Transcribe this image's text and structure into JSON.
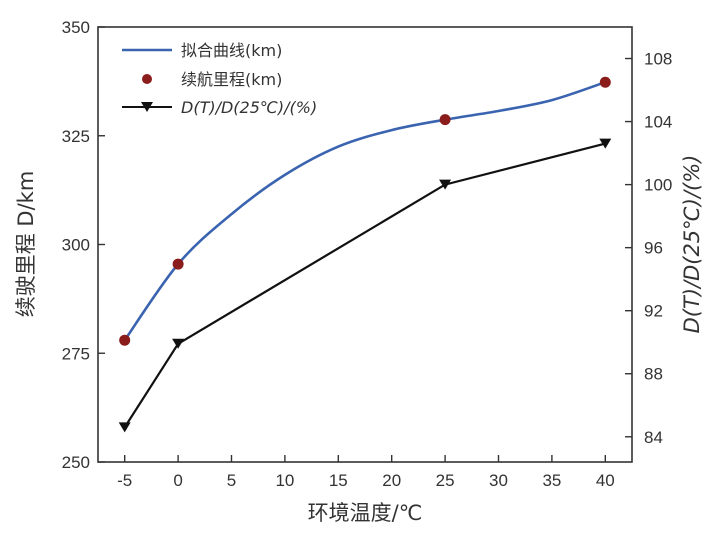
{
  "chart_data": {
    "type": "line",
    "x": [
      -5,
      0,
      25,
      40
    ],
    "xlabel": "环境温度/℃",
    "xlim": [
      -7.5,
      42.5
    ],
    "xticks": [
      -5,
      0,
      5,
      10,
      15,
      20,
      25,
      30,
      35,
      40
    ],
    "ylabel_left": "续驶里程 D/km",
    "ylim_left": [
      250,
      350
    ],
    "yticks_left": [
      250,
      275,
      300,
      325,
      350
    ],
    "ylabel_right": "D(T)/D(25℃)/(%)",
    "ylim_right": [
      82.4,
      110.0
    ],
    "yticks_right": [
      84,
      88,
      92,
      96,
      100,
      104,
      108
    ],
    "grid": false,
    "legend_position": "top-left",
    "series": [
      {
        "name": "拟合曲线(km)",
        "kind": "smooth-line",
        "axis": "left",
        "color": "#3a64b0",
        "x": [
          -5,
          0,
          5,
          10,
          15,
          20,
          25,
          30,
          35,
          40
        ],
        "values": [
          278,
          295.5,
          307,
          316,
          322.5,
          326.3,
          328.7,
          330.7,
          333.2,
          337.3
        ]
      },
      {
        "name": "续航里程(km)",
        "kind": "markers",
        "axis": "left",
        "color": "#8b1c1c",
        "x": [
          -5,
          0,
          25,
          40
        ],
        "values": [
          278,
          295.5,
          328.7,
          337.3
        ]
      },
      {
        "name": "D(T)/D(25℃)/(%)",
        "kind": "line-triangle",
        "axis": "right",
        "color": "#111111",
        "x": [
          -5,
          0,
          25,
          40
        ],
        "values": [
          84.6,
          89.9,
          100,
          102.6
        ]
      }
    ]
  }
}
